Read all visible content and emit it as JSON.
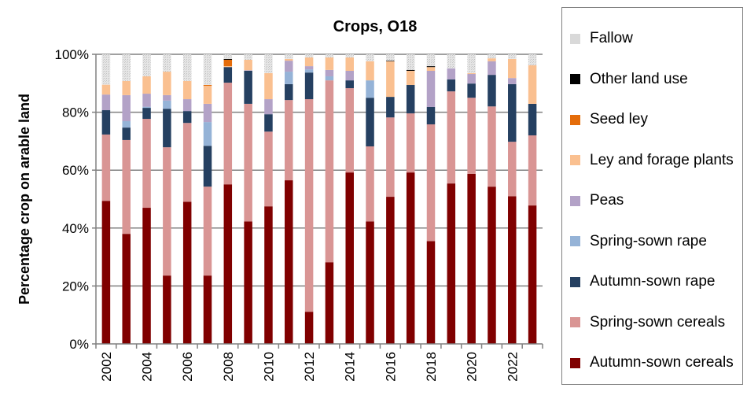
{
  "chart_data": {
    "type": "bar",
    "stacked": true,
    "title": "Crops, O18",
    "xlabel": "",
    "ylabel": "Percentage crop on arable land",
    "ylim": [
      0,
      100
    ],
    "yticks": [
      "0%",
      "20%",
      "40%",
      "60%",
      "80%",
      "100%"
    ],
    "grid": true,
    "legend_position": "right",
    "categories": [
      "2002",
      "2003",
      "2004",
      "2005",
      "2006",
      "2007",
      "2008",
      "2009",
      "2010",
      "2011",
      "2012",
      "2013",
      "2014",
      "2015",
      "2016",
      "2017",
      "2018",
      "2019",
      "2020",
      "2021",
      "2022",
      "2023"
    ],
    "xtick_labels": [
      "2002",
      "2004",
      "2006",
      "2008",
      "2010",
      "2012",
      "2014",
      "2016",
      "2018",
      "2020",
      "2022"
    ],
    "series": [
      {
        "name": "Autumn-sown cereals",
        "color": "#800000",
        "values": [
          49.4,
          38.0,
          47.0,
          23.6,
          49.1,
          23.6,
          55.1,
          42.3,
          47.5,
          56.5,
          11.1,
          28.2,
          59.2,
          42.3,
          50.8,
          59.2,
          35.5,
          55.4,
          58.7,
          54.3,
          51.0,
          47.8
        ]
      },
      {
        "name": "Spring-sown cereals",
        "color": "#d99594",
        "values": [
          22.9,
          32.4,
          30.7,
          44.3,
          27.2,
          30.7,
          35.1,
          40.6,
          25.8,
          27.7,
          73.4,
          62.8,
          29.1,
          25.9,
          27.4,
          20.4,
          40.3,
          31.8,
          26.3,
          27.7,
          18.8,
          24.2
        ]
      },
      {
        "name": "Autumn-sown rape",
        "color": "#254061",
        "values": [
          8.4,
          4.3,
          3.8,
          13.3,
          4.1,
          14.1,
          5.4,
          11.4,
          6.0,
          5.5,
          9.2,
          0,
          2.7,
          16.8,
          7.1,
          9.8,
          6.0,
          4.1,
          4.9,
          10.9,
          19.9,
          10.9
        ]
      },
      {
        "name": "Spring-sown rape",
        "color": "#95b3d7",
        "values": [
          0,
          2.2,
          0.4,
          2.8,
          0,
          8.2,
          0,
          0,
          0,
          4.3,
          1.1,
          1.4,
          0,
          6.0,
          0,
          0,
          0,
          0,
          0,
          0,
          0,
          0
        ]
      },
      {
        "name": "Peas",
        "color": "#b3a2c7",
        "values": [
          5.4,
          9.0,
          4.5,
          1.9,
          4.1,
          6.3,
          0,
          0.2,
          5.2,
          3.8,
          1.1,
          2.2,
          3.3,
          0,
          0,
          0,
          12.5,
          3.8,
          3.3,
          4.7,
          2.1,
          0
        ]
      },
      {
        "name": "Ley and forage plants",
        "color": "#fac090",
        "values": [
          3.4,
          4.9,
          6.0,
          8.1,
          6.3,
          6.2,
          0.3,
          3.6,
          9.0,
          0.6,
          3.0,
          4.3,
          4.6,
          6.6,
          12.3,
          4.9,
          1.3,
          0,
          0.3,
          1.0,
          6.6,
          13.3
        ]
      },
      {
        "name": "Seed ley",
        "color": "#e46c0a",
        "values": [
          0,
          0,
          0,
          0,
          0,
          0.3,
          2.2,
          0,
          0,
          0,
          0,
          0,
          0,
          0,
          0,
          0,
          0,
          0,
          0,
          0,
          0,
          0
        ]
      },
      {
        "name": "Other land use",
        "color": "#000000",
        "values": [
          0,
          0,
          0,
          0,
          0,
          0,
          0.3,
          0,
          0,
          0,
          0,
          0,
          0,
          0,
          0.2,
          0.3,
          0.3,
          0,
          0,
          0,
          0,
          0
        ]
      },
      {
        "name": "Fallow",
        "color": "#d9d9d9",
        "values": [
          10.5,
          9.2,
          7.6,
          6.0,
          9.2,
          10.6,
          1.6,
          1.9,
          6.5,
          1.6,
          1.1,
          1.1,
          1.1,
          2.4,
          2.2,
          5.4,
          4.1,
          4.9,
          6.5,
          1.4,
          1.6,
          3.8
        ]
      }
    ]
  }
}
